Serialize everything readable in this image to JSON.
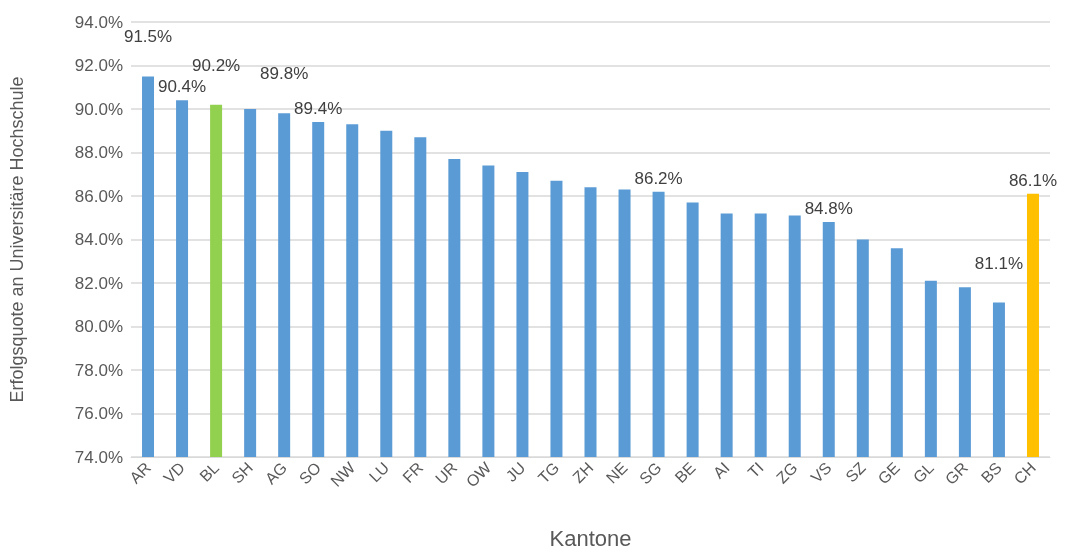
{
  "chart_data": {
    "type": "bar",
    "xlabel": "Kantone",
    "ylabel": "Erfolgsquote an Universitäre Hochschule",
    "categories": [
      "AR",
      "VD",
      "BL",
      "SH",
      "AG",
      "SO",
      "NW",
      "LU",
      "FR",
      "UR",
      "OW",
      "JU",
      "TG",
      "ZH",
      "NE",
      "SG",
      "BE",
      "AI",
      "TI",
      "ZG",
      "VS",
      "SZ",
      "GE",
      "GL",
      "GR",
      "BS",
      "CH"
    ],
    "values": [
      91.5,
      90.4,
      90.2,
      90.0,
      89.8,
      89.4,
      89.3,
      89.0,
      88.7,
      87.7,
      87.4,
      87.1,
      86.7,
      86.4,
      86.3,
      86.2,
      85.7,
      85.2,
      85.2,
      85.1,
      84.8,
      84.0,
      83.6,
      82.1,
      81.8,
      81.1,
      86.1
    ],
    "colors": [
      "#5b9bd5",
      "#5b9bd5",
      "#92d050",
      "#5b9bd5",
      "#5b9bd5",
      "#5b9bd5",
      "#5b9bd5",
      "#5b9bd5",
      "#5b9bd5",
      "#5b9bd5",
      "#5b9bd5",
      "#5b9bd5",
      "#5b9bd5",
      "#5b9bd5",
      "#5b9bd5",
      "#5b9bd5",
      "#5b9bd5",
      "#5b9bd5",
      "#5b9bd5",
      "#5b9bd5",
      "#5b9bd5",
      "#5b9bd5",
      "#5b9bd5",
      "#5b9bd5",
      "#5b9bd5",
      "#5b9bd5",
      "#ffc000"
    ],
    "value_labels": [
      "91.5%",
      "90.4%",
      "90.2%",
      null,
      "89.8%",
      "89.4%",
      null,
      null,
      null,
      null,
      null,
      null,
      null,
      null,
      null,
      "86.2%",
      null,
      null,
      null,
      null,
      "84.8%",
      null,
      null,
      null,
      null,
      "81.1%",
      "86.1%"
    ],
    "ylim": [
      74,
      94
    ],
    "yticks": [
      {
        "value": 74,
        "label": "74.0%"
      },
      {
        "value": 76,
        "label": "76.0%"
      },
      {
        "value": 78,
        "label": "78.0%"
      },
      {
        "value": 80,
        "label": "80.0%"
      },
      {
        "value": 82,
        "label": "82.0%"
      },
      {
        "value": 84,
        "label": "84.0%"
      },
      {
        "value": 86,
        "label": "86.0%"
      },
      {
        "value": 88,
        "label": "88.0%"
      },
      {
        "value": 90,
        "label": "90.0%"
      },
      {
        "value": 92,
        "label": "92.0%"
      },
      {
        "value": 94,
        "label": "94.0%"
      }
    ],
    "grid": "y"
  }
}
